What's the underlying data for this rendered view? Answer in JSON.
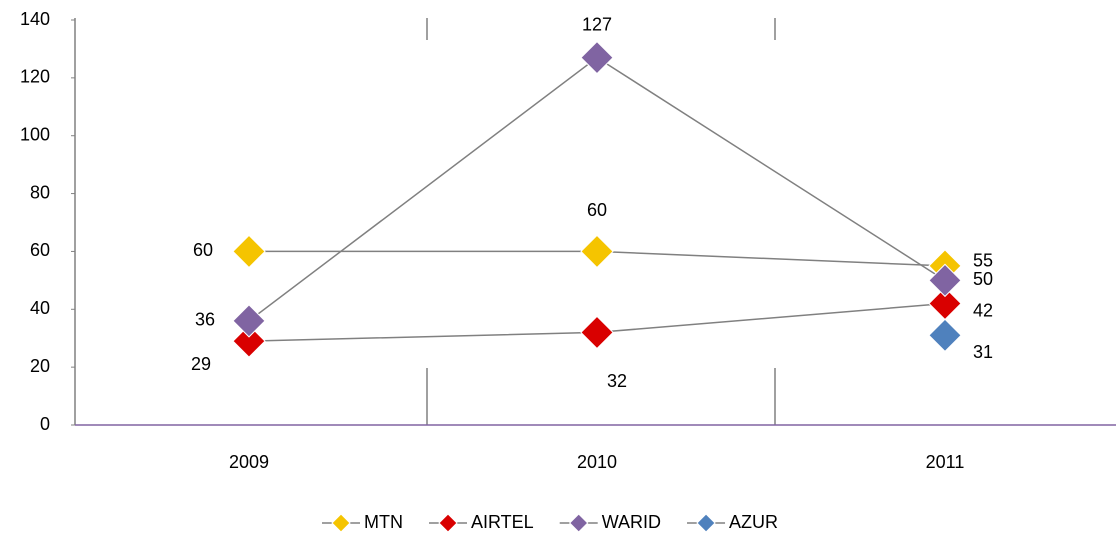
{
  "chart_data": {
    "type": "line",
    "categories": [
      "2009",
      "2010",
      "2011"
    ],
    "series": [
      {
        "name": "MTN",
        "color": "#f5c400",
        "values": [
          60,
          60,
          55
        ]
      },
      {
        "name": "AIRTEL",
        "color": "#d90000",
        "values": [
          29,
          32,
          42
        ]
      },
      {
        "name": "WARID",
        "color": "#8064a2",
        "values": [
          36,
          127,
          50
        ]
      },
      {
        "name": "AZUR",
        "color": "#4f81bd",
        "values": [
          null,
          null,
          31
        ]
      }
    ],
    "line_color": "#808080",
    "ylim": [
      0,
      140
    ],
    "yticks": [
      0,
      20,
      40,
      60,
      80,
      100,
      120,
      140
    ],
    "legend": "bottom"
  }
}
